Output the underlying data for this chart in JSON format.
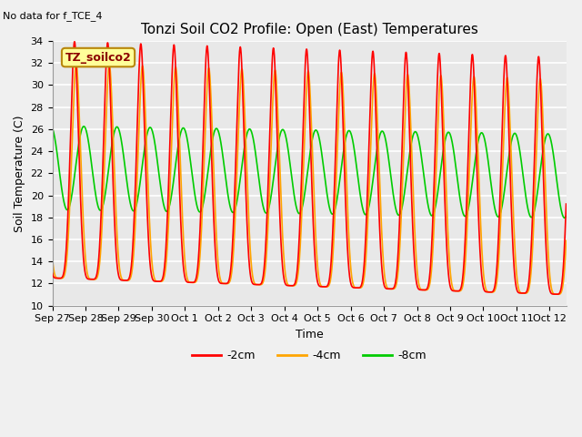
{
  "title": "Tonzi Soil CO2 Profile: Open (East) Temperatures",
  "no_data_label": "No data for f_TCE_4",
  "legend_box_label": "TZ_soilco2",
  "xlabel": "Time",
  "ylabel": "Soil Temperature (C)",
  "ylim": [
    10,
    34
  ],
  "yticks": [
    10,
    12,
    14,
    16,
    18,
    20,
    22,
    24,
    26,
    28,
    30,
    32,
    34
  ],
  "bg_color": "#e8e8e8",
  "grid_color": "#ffffff",
  "line_colors": {
    "m2cm": "#ff0000",
    "m4cm": "#ffa500",
    "m8cm": "#00cc00"
  },
  "line_widths": {
    "m2cm": 1.2,
    "m4cm": 1.2,
    "m8cm": 1.2
  },
  "x_tick_labels": [
    "Sep 27",
    "Sep 28",
    "Sep 29",
    "Sep 30",
    "Oct 1",
    "Oct 2",
    "Oct 3",
    "Oct 4",
    "Oct 5",
    "Oct 6",
    "Oct 7",
    "Oct 8",
    "Oct 9",
    "Oct 10",
    "Oct 11",
    "Oct 12"
  ],
  "num_days": 15.5,
  "samples_per_day": 144,
  "legend_labels": [
    "-2cm",
    "-4cm",
    "-8cm"
  ],
  "title_fontsize": 11,
  "tick_fontsize": 8,
  "label_fontsize": 9,
  "fig_bg": "#f0f0f0"
}
